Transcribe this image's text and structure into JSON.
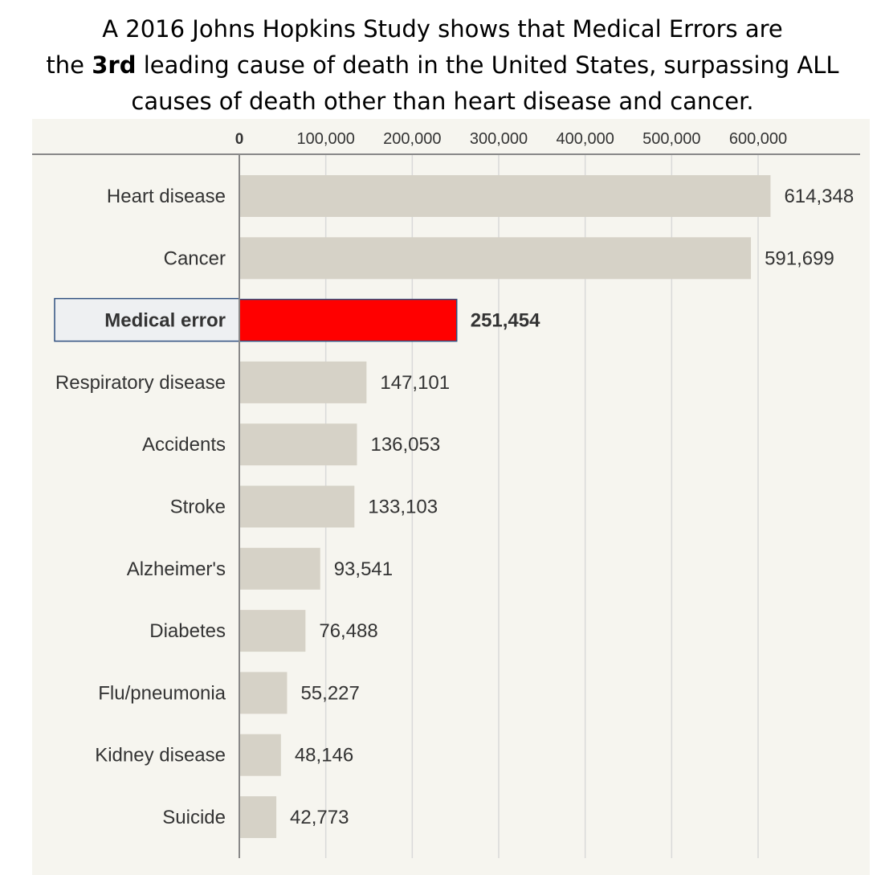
{
  "title": {
    "line1": "A 2016 Johns Hopkins Study shows that Medical Errors are",
    "line2_pre": "the ",
    "line2_bold": "3rd",
    "line2_post": " leading cause of death in the United States, surpassing ALL",
    "line3": "causes of death other than  heart disease and cancer."
  },
  "colors": {
    "panel_background": "#f6f5ef",
    "bar": "#d6d2c7",
    "highlight_bar": "#ff0000",
    "highlight_label_background": "#eef0f2",
    "highlight_border": "#2f4f7f",
    "axis": "#888888",
    "gridline": "#d9d9d9",
    "text": "#333333"
  },
  "chart_data": {
    "type": "bar",
    "orientation": "horizontal",
    "categories": [
      "Heart disease",
      "Cancer",
      "Medical error",
      "Respiratory disease",
      "Accidents",
      "Stroke",
      "Alzheimer's",
      "Diabetes",
      "Flu/pneumonia",
      "Kidney disease",
      "Suicide"
    ],
    "values": [
      614348,
      591699,
      251454,
      147101,
      136053,
      133103,
      93541,
      76488,
      55227,
      48146,
      42773
    ],
    "value_labels": [
      "614,348",
      "591,699",
      "251,454",
      "147,101",
      "136,053",
      "133,103",
      "93,541",
      "76,488",
      "55,227",
      "48,146",
      "42,773"
    ],
    "highlight": "Medical error",
    "xlim": [
      0,
      600000
    ],
    "xticks": [
      0,
      100000,
      200000,
      300000,
      400000,
      500000,
      600000
    ],
    "xtick_labels": [
      "0",
      "100,000",
      "200,000",
      "300,000",
      "400,000",
      "500,000",
      "600,000"
    ],
    "xaxis_position": "top",
    "grid": true
  }
}
